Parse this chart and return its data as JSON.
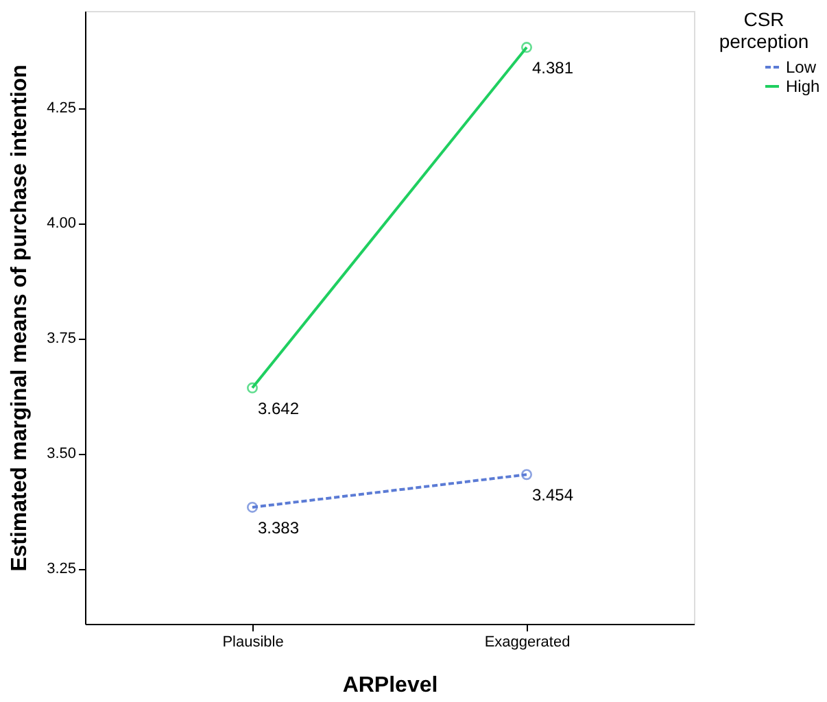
{
  "chart_data": {
    "type": "line",
    "xlabel": "ARPlevel",
    "ylabel": "Estimated marginal means of purchase intention",
    "legend_title": "CSR perception",
    "categories": [
      "Plausible",
      "Exaggerated"
    ],
    "series": [
      {
        "name": "Low",
        "color": "#5b7bd5",
        "values": [
          3.383,
          3.454
        ],
        "line_style": "dashed"
      },
      {
        "name": "High",
        "color": "#1fcf60",
        "values": [
          3.642,
          4.381
        ],
        "line_style": "solid"
      }
    ],
    "ylim": [
      3.13,
      4.46
    ],
    "yticks": [
      3.25,
      {
        "value": 3.5,
        "label": "3.50"
      },
      3.75,
      {
        "value": 4.0,
        "label": "4.00"
      },
      4.25
    ],
    "data_labels": true,
    "marker": "circle",
    "legend": "right",
    "grid": false
  }
}
